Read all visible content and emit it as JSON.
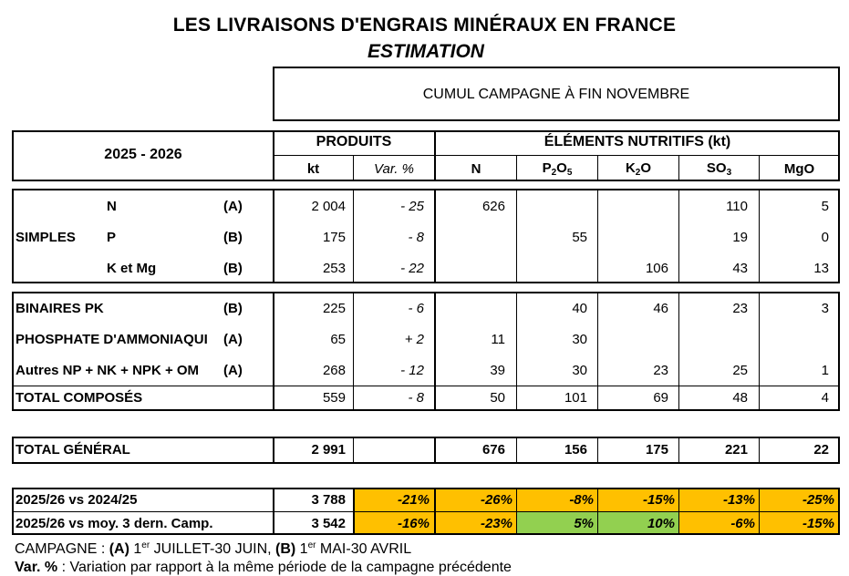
{
  "title": "LES LIVRAISONS D'ENGRAIS MINÉRAUX EN FRANCE",
  "subtitle": "ESTIMATION",
  "period_header": "CUMUL CAMPAGNE À FIN NOVEMBRE",
  "season": "2025 - 2026",
  "headers": {
    "produits": "PRODUITS",
    "elements": "ÉLÉMENTS NUTRITIFS (kt)",
    "kt": "kt",
    "var": "Var. %",
    "n": "N",
    "p_base": "P",
    "p_sub1": "2",
    "p_mid": "O",
    "p_sub2": "5",
    "k_base": "K",
    "k_sub": "2",
    "k_end": "O",
    "so_base": "SO",
    "so_sub": "3",
    "mgo": "MgO"
  },
  "simples": {
    "group_label": "SIMPLES",
    "rows": [
      {
        "label": "N",
        "camp": "(A)",
        "kt": "2 004",
        "var": "- 25",
        "n": "626",
        "p": "",
        "k": "",
        "so3": "110",
        "mgo": "5"
      },
      {
        "label": "P",
        "camp": "(B)",
        "kt": "175",
        "var": "- 8",
        "n": "",
        "p": "55",
        "k": "",
        "so3": "19",
        "mgo": "0"
      },
      {
        "label": "K et Mg",
        "camp": "(B)",
        "kt": "253",
        "var": "- 22",
        "n": "",
        "p": "",
        "k": "106",
        "so3": "43",
        "mgo": "13"
      }
    ]
  },
  "composes": {
    "rows": [
      {
        "label": "BINAIRES PK",
        "camp": "(B)",
        "kt": "225",
        "var": "- 6",
        "n": "",
        "p": "40",
        "k": "46",
        "so3": "23",
        "mgo": "3"
      },
      {
        "label": "PHOSPHATE D'AMMONIAQUI",
        "camp": "(A)",
        "kt": "65",
        "var": "+ 2",
        "n": "11",
        "p": "30",
        "k": "",
        "so3": "",
        "mgo": ""
      },
      {
        "label": "Autres NP + NK + NPK + OM",
        "camp": "(A)",
        "kt": "268",
        "var": "- 12",
        "n": "39",
        "p": "30",
        "k": "23",
        "so3": "25",
        "mgo": "1"
      }
    ],
    "total": {
      "label": "TOTAL COMPOSÉS",
      "kt": "559",
      "var": "- 8",
      "n": "50",
      "p": "101",
      "k": "69",
      "so3": "48",
      "mgo": "4"
    }
  },
  "total_general": {
    "label": "TOTAL GÉNÉRAL",
    "kt": "2 991",
    "n": "676",
    "p": "156",
    "k": "175",
    "so3": "221",
    "mgo": "22"
  },
  "comparisons": [
    {
      "label": "2025/26 vs 2024/25",
      "kt": "3 788",
      "var": "-21%",
      "n": "-26%",
      "p": "-8%",
      "k": "-15%",
      "so3": "-13%",
      "mgo": "-25%",
      "colors": [
        "#ffc000",
        "#ffc000",
        "#ffc000",
        "#ffc000",
        "#ffc000",
        "#ffc000"
      ]
    },
    {
      "label": "2025/26 vs moy. 3 dern. Camp.",
      "kt": "3 542",
      "var": "-16%",
      "n": "-23%",
      "p": "5%",
      "k": "10%",
      "so3": "-6%",
      "mgo": "-15%",
      "colors": [
        "#ffc000",
        "#ffc000",
        "#92d050",
        "#92d050",
        "#ffc000",
        "#ffc000"
      ]
    }
  ],
  "footer": {
    "campagne_prefix": "CAMPAGNE : ",
    "a_label": "(A)",
    "a_text_1": " 1",
    "a_sup": "er",
    "a_text_2": " JUILLET-30 JUIN, ",
    "b_label": "(B)",
    "b_text_1": " 1",
    "b_sup": "er",
    "b_text_2": " MAI-30 AVRIL",
    "var_label": "Var. %",
    "var_text": " : Variation par rapport à la même période de la campagne précédente"
  }
}
